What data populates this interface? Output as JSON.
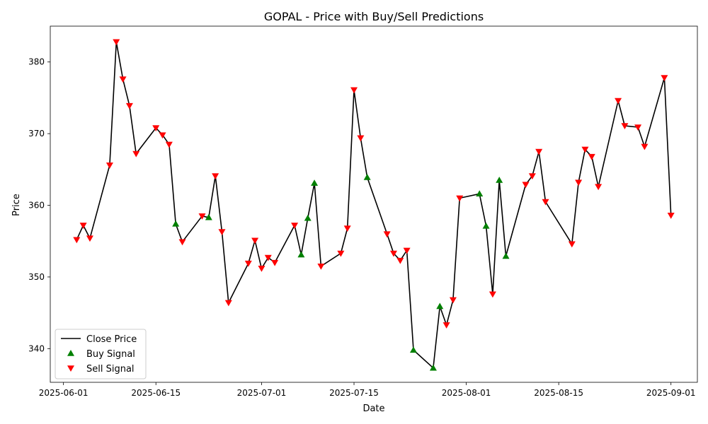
{
  "chart_data": {
    "type": "line",
    "title": "GOPAL - Price with Buy/Sell Predictions",
    "xlabel": "Date",
    "ylabel": "Price",
    "xlim": [
      "2025-05-30",
      "2025-09-05"
    ],
    "ylim": [
      335.3,
      385
    ],
    "x_ticks": [
      "2025-06-01",
      "2025-06-15",
      "2025-07-01",
      "2025-07-15",
      "2025-08-01",
      "2025-08-15",
      "2025-09-01"
    ],
    "y_ticks": [
      340,
      350,
      360,
      370,
      380
    ],
    "legend": {
      "placement": "lower-left",
      "entries": [
        "Close Price",
        "Buy Signal",
        "Sell Signal"
      ]
    },
    "colors": {
      "line": "#000000",
      "buy": "#008000",
      "sell": "#ff0000"
    },
    "series": [
      {
        "name": "Close Price",
        "points": [
          {
            "x": "2025-06-03",
            "y": 355.2,
            "signal": "sell"
          },
          {
            "x": "2025-06-04",
            "y": 357.2,
            "signal": "sell"
          },
          {
            "x": "2025-06-05",
            "y": 355.4,
            "signal": "sell"
          },
          {
            "x": "2025-06-08",
            "y": 365.6,
            "signal": "sell"
          },
          {
            "x": "2025-06-09",
            "y": 382.8,
            "signal": "sell"
          },
          {
            "x": "2025-06-10",
            "y": 377.6,
            "signal": "sell"
          },
          {
            "x": "2025-06-11",
            "y": 373.9,
            "signal": "sell"
          },
          {
            "x": "2025-06-12",
            "y": 367.2,
            "signal": "sell"
          },
          {
            "x": "2025-06-15",
            "y": 370.8,
            "signal": "sell"
          },
          {
            "x": "2025-06-16",
            "y": 369.8,
            "signal": "sell"
          },
          {
            "x": "2025-06-17",
            "y": 368.5,
            "signal": "sell"
          },
          {
            "x": "2025-06-18",
            "y": 357.4,
            "signal": "buy"
          },
          {
            "x": "2025-06-19",
            "y": 354.9,
            "signal": "sell"
          },
          {
            "x": "2025-06-22",
            "y": 358.5,
            "signal": "sell"
          },
          {
            "x": "2025-06-23",
            "y": 358.3,
            "signal": "buy"
          },
          {
            "x": "2025-06-24",
            "y": 364.1,
            "signal": "sell"
          },
          {
            "x": "2025-06-25",
            "y": 356.3,
            "signal": "sell"
          },
          {
            "x": "2025-06-26",
            "y": 346.4,
            "signal": "sell"
          },
          {
            "x": "2025-06-29",
            "y": 351.9,
            "signal": "sell"
          },
          {
            "x": "2025-06-30",
            "y": 355.1,
            "signal": "sell"
          },
          {
            "x": "2025-07-01",
            "y": 351.2,
            "signal": "sell"
          },
          {
            "x": "2025-07-02",
            "y": 352.7,
            "signal": "sell"
          },
          {
            "x": "2025-07-03",
            "y": 352.0,
            "signal": "sell"
          },
          {
            "x": "2025-07-06",
            "y": 357.2,
            "signal": "sell"
          },
          {
            "x": "2025-07-07",
            "y": 353.1,
            "signal": "buy"
          },
          {
            "x": "2025-07-08",
            "y": 358.2,
            "signal": "buy"
          },
          {
            "x": "2025-07-09",
            "y": 363.1,
            "signal": "buy"
          },
          {
            "x": "2025-07-10",
            "y": 351.5,
            "signal": "sell"
          },
          {
            "x": "2025-07-13",
            "y": 353.3,
            "signal": "sell"
          },
          {
            "x": "2025-07-14",
            "y": 356.8,
            "signal": "sell"
          },
          {
            "x": "2025-07-15",
            "y": 376.1,
            "signal": "sell"
          },
          {
            "x": "2025-07-16",
            "y": 369.4,
            "signal": "sell"
          },
          {
            "x": "2025-07-17",
            "y": 363.9,
            "signal": "buy"
          },
          {
            "x": "2025-07-20",
            "y": 356.0,
            "signal": "sell"
          },
          {
            "x": "2025-07-21",
            "y": 353.3,
            "signal": "sell"
          },
          {
            "x": "2025-07-22",
            "y": 352.3,
            "signal": "sell"
          },
          {
            "x": "2025-07-23",
            "y": 353.7,
            "signal": "sell"
          },
          {
            "x": "2025-07-24",
            "y": 339.8,
            "signal": "buy"
          },
          {
            "x": "2025-07-27",
            "y": 337.3,
            "signal": "buy"
          },
          {
            "x": "2025-07-28",
            "y": 345.9,
            "signal": "buy"
          },
          {
            "x": "2025-07-29",
            "y": 343.3,
            "signal": "sell"
          },
          {
            "x": "2025-07-30",
            "y": 346.8,
            "signal": "sell"
          },
          {
            "x": "2025-07-31",
            "y": 361.0,
            "signal": "sell"
          },
          {
            "x": "2025-08-03",
            "y": 361.6,
            "signal": "buy"
          },
          {
            "x": "2025-08-04",
            "y": 357.1,
            "signal": "buy"
          },
          {
            "x": "2025-08-05",
            "y": 347.6,
            "signal": "sell"
          },
          {
            "x": "2025-08-06",
            "y": 363.5,
            "signal": "buy"
          },
          {
            "x": "2025-08-07",
            "y": 352.9,
            "signal": "buy"
          },
          {
            "x": "2025-08-10",
            "y": 362.9,
            "signal": "sell"
          },
          {
            "x": "2025-08-11",
            "y": 364.1,
            "signal": "sell"
          },
          {
            "x": "2025-08-12",
            "y": 367.5,
            "signal": "sell"
          },
          {
            "x": "2025-08-13",
            "y": 360.5,
            "signal": "sell"
          },
          {
            "x": "2025-08-17",
            "y": 354.6,
            "signal": "sell"
          },
          {
            "x": "2025-08-18",
            "y": 363.2,
            "signal": "sell"
          },
          {
            "x": "2025-08-19",
            "y": 367.8,
            "signal": "sell"
          },
          {
            "x": "2025-08-20",
            "y": 366.8,
            "signal": "sell"
          },
          {
            "x": "2025-08-21",
            "y": 362.6,
            "signal": "sell"
          },
          {
            "x": "2025-08-24",
            "y": 374.6,
            "signal": "sell"
          },
          {
            "x": "2025-08-25",
            "y": 371.1,
            "signal": "sell"
          },
          {
            "x": "2025-08-27",
            "y": 370.9,
            "signal": "sell"
          },
          {
            "x": "2025-08-28",
            "y": 368.2,
            "signal": "sell"
          },
          {
            "x": "2025-08-31",
            "y": 377.8,
            "signal": "sell"
          },
          {
            "x": "2025-09-01",
            "y": 358.6,
            "signal": "sell"
          }
        ]
      }
    ]
  }
}
